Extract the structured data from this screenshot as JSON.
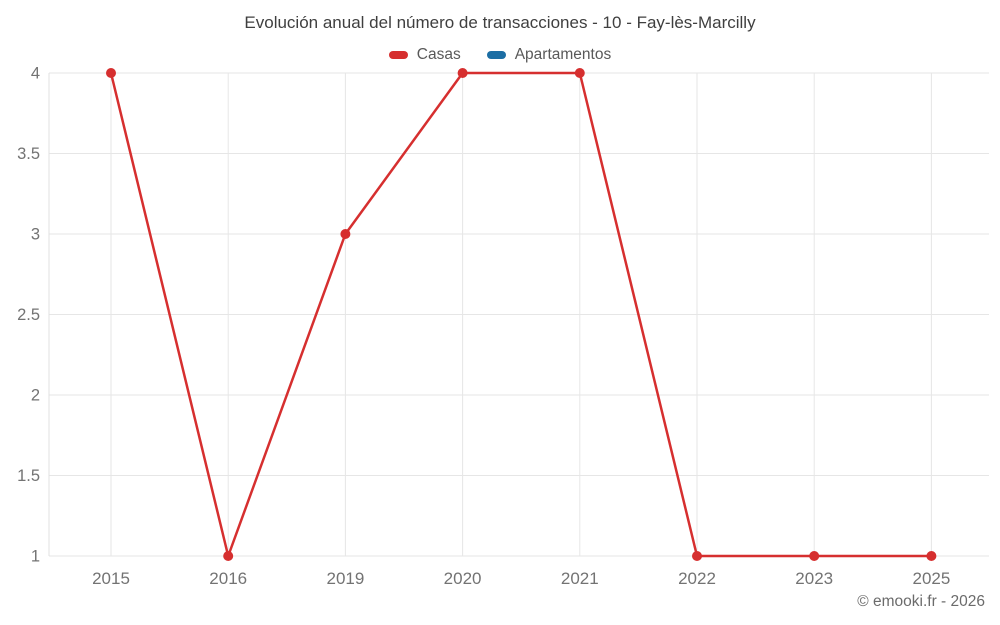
{
  "chart_data": {
    "type": "line",
    "title": "Evolución anual del número de transacciones - 10 - Fay-lès-Marcilly",
    "categories": [
      "2015",
      "2016",
      "2019",
      "2020",
      "2021",
      "2022",
      "2023",
      "2025"
    ],
    "series": [
      {
        "name": "Casas",
        "color": "#d62f2f",
        "values": [
          4,
          1,
          3,
          4,
          4,
          1,
          1,
          1
        ]
      },
      {
        "name": "Apartamentos",
        "color": "#1c6ea4",
        "values": []
      }
    ],
    "xlabel": "",
    "ylabel": "",
    "ylim": [
      1,
      4
    ],
    "yticks": [
      1,
      1.5,
      2,
      2.5,
      3,
      3.5,
      4
    ],
    "grid": true,
    "legend_position": "top",
    "marker_radius": 5,
    "line_width": 2.5
  },
  "styles": {
    "grid_color": "#e6e6e6",
    "axis_color": "#e0e0e0",
    "tick_label_color": "#737373",
    "title_color": "#3f3f3f",
    "legend_label_color": "#595959",
    "footer_color": "#6b6b6b"
  },
  "footer": {
    "credit": "© emooki.fr - 2026"
  }
}
